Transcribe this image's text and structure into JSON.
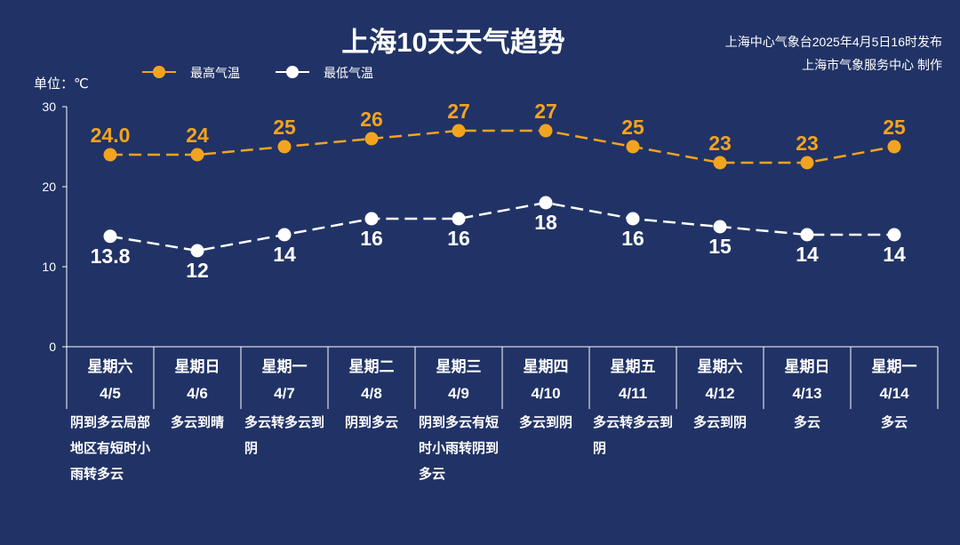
{
  "header": {
    "title": "上海10天天气趋势",
    "source_line1": "上海中心气象台2025年4月5日16时发布",
    "source_line2": "上海市气象服务中心 制作",
    "unit": "单位：℃"
  },
  "colors": {
    "background": "#213366",
    "high": "#f3a41f",
    "low": "#ffffff"
  },
  "chart_data": {
    "type": "line",
    "title": "上海10天天气趋势",
    "ylabel": "单位：℃",
    "ylim": [
      0,
      30
    ],
    "yticks": [
      0,
      10,
      20,
      30
    ],
    "legend_position": "top-left",
    "categories": [
      "4/5",
      "4/6",
      "4/7",
      "4/8",
      "4/9",
      "4/10",
      "4/11",
      "4/12",
      "4/13",
      "4/14"
    ],
    "series": [
      {
        "name": "最高气温",
        "color": "#f3a41f",
        "values": [
          24.0,
          24,
          25,
          26,
          27,
          27,
          25,
          23,
          23,
          25
        ],
        "labels": [
          "24.0",
          "24",
          "25",
          "26",
          "27",
          "27",
          "25",
          "23",
          "23",
          "25"
        ]
      },
      {
        "name": "最低气温",
        "color": "#ffffff",
        "values": [
          13.8,
          12,
          14,
          16,
          16,
          18,
          16,
          15,
          14,
          14
        ],
        "labels": [
          "13.8",
          "12",
          "14",
          "16",
          "16",
          "18",
          "16",
          "15",
          "14",
          "14"
        ]
      }
    ]
  },
  "days": [
    {
      "weekday": "星期六",
      "date": "4/5",
      "desc": "阴到多云局部地区有短时小雨转多云"
    },
    {
      "weekday": "星期日",
      "date": "4/6",
      "desc": "多云到晴"
    },
    {
      "weekday": "星期一",
      "date": "4/7",
      "desc": "多云转多云到阴"
    },
    {
      "weekday": "星期二",
      "date": "4/8",
      "desc": "阴到多云"
    },
    {
      "weekday": "星期三",
      "date": "4/9",
      "desc": "阴到多云有短时小雨转阴到多云"
    },
    {
      "weekday": "星期四",
      "date": "4/10",
      "desc": "多云到阴"
    },
    {
      "weekday": "星期五",
      "date": "4/11",
      "desc": "多云转多云到阴"
    },
    {
      "weekday": "星期六",
      "date": "4/12",
      "desc": "多云到阴"
    },
    {
      "weekday": "星期日",
      "date": "4/13",
      "desc": "多云"
    },
    {
      "weekday": "星期一",
      "date": "4/14",
      "desc": "多云"
    }
  ]
}
